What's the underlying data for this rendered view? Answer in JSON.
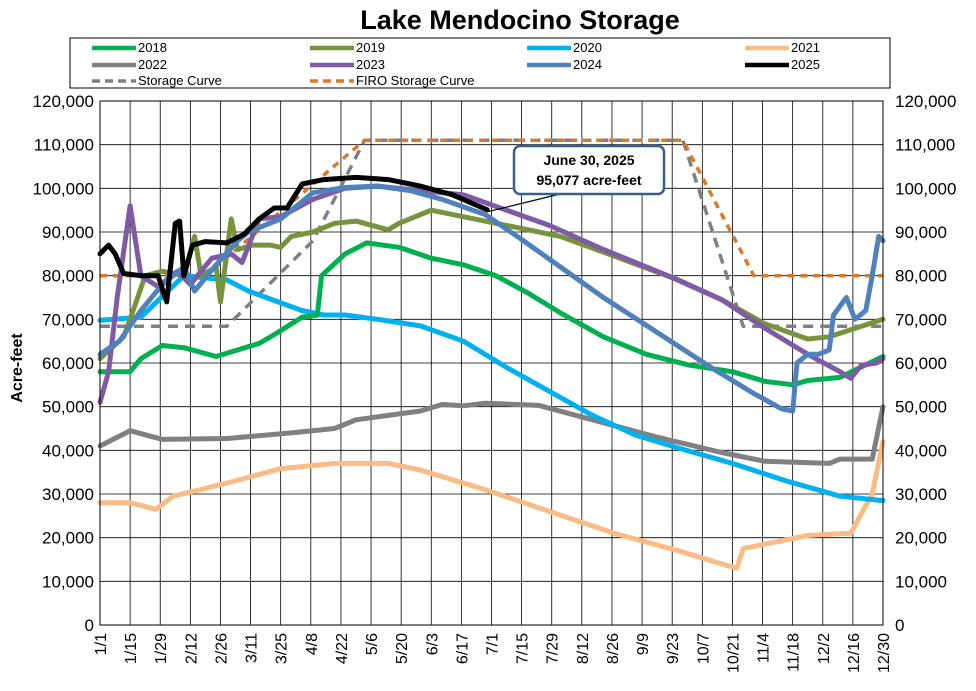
{
  "chart_data": {
    "type": "line",
    "title": "Lake Mendocino Storage",
    "ylabel": "Acre-feet",
    "ylim": [
      0,
      120000
    ],
    "yticks": [
      0,
      10000,
      20000,
      30000,
      40000,
      50000,
      60000,
      70000,
      80000,
      90000,
      100000,
      110000,
      120000
    ],
    "ytick_labels": [
      "0",
      "10,000",
      "20,000",
      "30,000",
      "40,000",
      "50,000",
      "60,000",
      "70,000",
      "80,000",
      "90,000",
      "100,000",
      "110,000",
      "120,000"
    ],
    "xlim": [
      1,
      365
    ],
    "xtick_days": [
      1,
      15,
      29,
      43,
      57,
      71,
      85,
      99,
      113,
      127,
      141,
      155,
      169,
      183,
      197,
      211,
      225,
      239,
      253,
      267,
      281,
      295,
      309,
      323,
      337,
      351,
      365
    ],
    "xtick_labels": [
      "1/1",
      "1/15",
      "1/29",
      "2/12",
      "2/26",
      "3/11",
      "3/25",
      "4/8",
      "4/22",
      "5/6",
      "5/20",
      "6/3",
      "6/17",
      "7/1",
      "7/15",
      "7/29",
      "8/12",
      "8/26",
      "9/9",
      "9/23",
      "10/7",
      "10/21",
      "11/4",
      "11/18",
      "12/2",
      "12/16",
      "12/30"
    ],
    "grid": true,
    "legend_position": "top",
    "series": [
      {
        "name": "Storage Curve",
        "color": "#808080",
        "dash": true,
        "points": [
          [
            1,
            68400
          ],
          [
            60,
            68400
          ],
          [
            100,
            88000
          ],
          [
            124,
            111000
          ],
          [
            272,
            111000
          ],
          [
            300,
            68400
          ],
          [
            365,
            68400
          ]
        ]
      },
      {
        "name": "FIRO Storage Curve",
        "color": "#d97a2a",
        "dash": true,
        "points": [
          [
            1,
            80000
          ],
          [
            50,
            80000
          ],
          [
            124,
            111000
          ],
          [
            272,
            111000
          ],
          [
            305,
            80000
          ],
          [
            365,
            80000
          ]
        ]
      },
      {
        "name": "2022",
        "color": "#808080",
        "points": [
          [
            1,
            41000
          ],
          [
            15,
            44500
          ],
          [
            30,
            42500
          ],
          [
            60,
            42700
          ],
          [
            90,
            44000
          ],
          [
            110,
            45000
          ],
          [
            120,
            47000
          ],
          [
            150,
            49000
          ],
          [
            160,
            50500
          ],
          [
            170,
            50200
          ],
          [
            180,
            50800
          ],
          [
            205,
            50300
          ],
          [
            230,
            47000
          ],
          [
            260,
            43000
          ],
          [
            290,
            39500
          ],
          [
            310,
            37500
          ],
          [
            340,
            37000
          ],
          [
            345,
            38000
          ],
          [
            360,
            38000
          ],
          [
            365,
            50000
          ]
        ]
      },
      {
        "name": "2021",
        "color": "#f9bc86",
        "points": [
          [
            1,
            28000
          ],
          [
            15,
            28000
          ],
          [
            27,
            26500
          ],
          [
            35,
            29500
          ],
          [
            60,
            32500
          ],
          [
            85,
            35800
          ],
          [
            110,
            37000
          ],
          [
            135,
            37000
          ],
          [
            150,
            35500
          ],
          [
            180,
            31000
          ],
          [
            210,
            26000
          ],
          [
            240,
            21000
          ],
          [
            270,
            17000
          ],
          [
            290,
            14000
          ],
          [
            297,
            13000
          ],
          [
            300,
            17500
          ],
          [
            315,
            19000
          ],
          [
            330,
            20500
          ],
          [
            340,
            20800
          ],
          [
            350,
            21000
          ],
          [
            360,
            30000
          ],
          [
            365,
            42000
          ]
        ]
      },
      {
        "name": "2020",
        "color": "#00b0f0",
        "points": [
          [
            1,
            69800
          ],
          [
            20,
            70500
          ],
          [
            40,
            80000
          ],
          [
            60,
            79000
          ],
          [
            70,
            76500
          ],
          [
            95,
            72000
          ],
          [
            105,
            71000
          ],
          [
            115,
            71000
          ],
          [
            130,
            70000
          ],
          [
            150,
            68500
          ],
          [
            170,
            65000
          ],
          [
            190,
            59000
          ],
          [
            210,
            53500
          ],
          [
            230,
            48000
          ],
          [
            250,
            43500
          ],
          [
            270,
            40500
          ],
          [
            295,
            37000
          ],
          [
            320,
            33000
          ],
          [
            345,
            29500
          ],
          [
            365,
            28500
          ]
        ]
      },
      {
        "name": "2018",
        "color": "#00b050",
        "points": [
          [
            1,
            58000
          ],
          [
            15,
            58000
          ],
          [
            20,
            61000
          ],
          [
            30,
            64000
          ],
          [
            40,
            63500
          ],
          [
            55,
            61500
          ],
          [
            65,
            63000
          ],
          [
            75,
            64500
          ],
          [
            82,
            66500
          ],
          [
            95,
            70500
          ],
          [
            102,
            71000
          ],
          [
            104,
            80000
          ],
          [
            115,
            85000
          ],
          [
            125,
            87500
          ],
          [
            140,
            86500
          ],
          [
            155,
            84000
          ],
          [
            170,
            82500
          ],
          [
            185,
            80000
          ],
          [
            200,
            76000
          ],
          [
            215,
            71500
          ],
          [
            235,
            66000
          ],
          [
            255,
            62000
          ],
          [
            275,
            59500
          ],
          [
            295,
            58000
          ],
          [
            310,
            55800
          ],
          [
            323,
            55000
          ],
          [
            330,
            56000
          ],
          [
            345,
            56700
          ],
          [
            365,
            61500
          ]
        ]
      },
      {
        "name": "2019",
        "color": "#77933c",
        "points": [
          [
            1,
            61000
          ],
          [
            12,
            66000
          ],
          [
            15,
            70000
          ],
          [
            22,
            80000
          ],
          [
            30,
            81000
          ],
          [
            40,
            80000
          ],
          [
            45,
            89000
          ],
          [
            48,
            80000
          ],
          [
            55,
            82000
          ],
          [
            57,
            74000
          ],
          [
            62,
            93000
          ],
          [
            65,
            86000
          ],
          [
            72,
            87000
          ],
          [
            80,
            87000
          ],
          [
            85,
            86500
          ],
          [
            90,
            89000
          ],
          [
            100,
            90000
          ],
          [
            110,
            92000
          ],
          [
            120,
            92500
          ],
          [
            135,
            90500
          ],
          [
            140,
            92000
          ],
          [
            155,
            95000
          ],
          [
            175,
            93000
          ],
          [
            195,
            91000
          ],
          [
            215,
            89000
          ],
          [
            240,
            84500
          ],
          [
            270,
            79000
          ],
          [
            290,
            74500
          ],
          [
            310,
            69000
          ],
          [
            330,
            65500
          ],
          [
            340,
            66000
          ],
          [
            365,
            70000
          ]
        ]
      },
      {
        "name": "2023",
        "color": "#7f5ba6",
        "points": [
          [
            1,
            51000
          ],
          [
            5,
            58000
          ],
          [
            9,
            75000
          ],
          [
            15,
            96000
          ],
          [
            20,
            80000
          ],
          [
            28,
            77500
          ],
          [
            37,
            81000
          ],
          [
            43,
            78000
          ],
          [
            53,
            84000
          ],
          [
            62,
            85000
          ],
          [
            67,
            83000
          ],
          [
            75,
            93000
          ],
          [
            85,
            93500
          ],
          [
            100,
            97500
          ],
          [
            115,
            100000
          ],
          [
            130,
            100500
          ],
          [
            150,
            99500
          ],
          [
            170,
            98500
          ],
          [
            190,
            95000
          ],
          [
            210,
            91500
          ],
          [
            235,
            86000
          ],
          [
            265,
            80000
          ],
          [
            290,
            74500
          ],
          [
            310,
            68000
          ],
          [
            330,
            62000
          ],
          [
            345,
            58000
          ],
          [
            350,
            56500
          ],
          [
            355,
            59500
          ],
          [
            362,
            60000
          ],
          [
            365,
            61000
          ]
        ]
      },
      {
        "name": "2024",
        "color": "#4f81bd",
        "points": [
          [
            1,
            62000
          ],
          [
            10,
            65000
          ],
          [
            20,
            72000
          ],
          [
            30,
            78000
          ],
          [
            40,
            82000
          ],
          [
            45,
            76500
          ],
          [
            55,
            82500
          ],
          [
            65,
            88000
          ],
          [
            70,
            90000
          ],
          [
            85,
            93000
          ],
          [
            100,
            99000
          ],
          [
            115,
            100200
          ],
          [
            130,
            100500
          ],
          [
            145,
            99500
          ],
          [
            160,
            97500
          ],
          [
            180,
            94000
          ],
          [
            195,
            89000
          ],
          [
            215,
            82000
          ],
          [
            235,
            75000
          ],
          [
            260,
            67000
          ],
          [
            285,
            59000
          ],
          [
            305,
            53000
          ],
          [
            318,
            49500
          ],
          [
            323,
            49000
          ],
          [
            325,
            60000
          ],
          [
            330,
            62000
          ],
          [
            335,
            62000
          ],
          [
            340,
            63000
          ],
          [
            342,
            71000
          ],
          [
            348,
            75000
          ],
          [
            352,
            70000
          ],
          [
            357,
            72000
          ],
          [
            360,
            80000
          ],
          [
            363,
            89000
          ],
          [
            365,
            88000
          ]
        ]
      },
      {
        "name": "2025",
        "color": "#000000",
        "points": [
          [
            1,
            85000
          ],
          [
            5,
            87000
          ],
          [
            8,
            85000
          ],
          [
            12,
            80500
          ],
          [
            20,
            80000
          ],
          [
            28,
            80000
          ],
          [
            32,
            74000
          ],
          [
            36,
            92000
          ],
          [
            38,
            92500
          ],
          [
            40,
            80000
          ],
          [
            44,
            87000
          ],
          [
            50,
            87800
          ],
          [
            60,
            87500
          ],
          [
            68,
            89500
          ],
          [
            75,
            93000
          ],
          [
            82,
            95500
          ],
          [
            88,
            95500
          ],
          [
            95,
            101000
          ],
          [
            105,
            102000
          ],
          [
            120,
            102500
          ],
          [
            135,
            102000
          ],
          [
            150,
            100500
          ],
          [
            165,
            98500
          ],
          [
            181,
            95077
          ]
        ]
      }
    ],
    "annotation": {
      "line1": "June 30, 2025",
      "line2": "95,077 acre-feet",
      "day": 181,
      "value": 95077
    }
  }
}
